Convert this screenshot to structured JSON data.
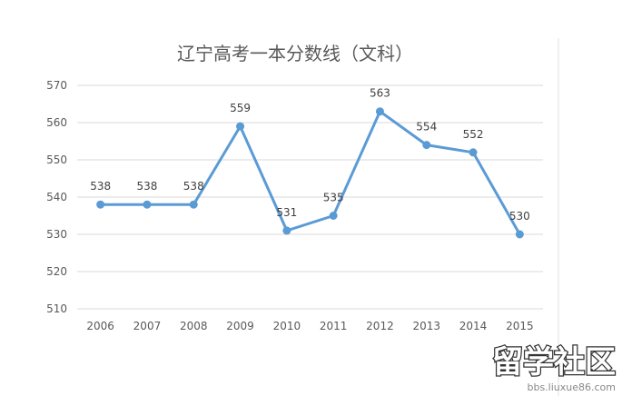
{
  "chart_data": {
    "type": "line",
    "title": "辽宁高考一本分数线（文科）",
    "categories": [
      "2006",
      "2007",
      "2008",
      "2009",
      "2010",
      "2011",
      "2012",
      "2013",
      "2014",
      "2015"
    ],
    "series": [
      {
        "values": [
          538,
          538,
          538,
          559,
          531,
          535,
          563,
          554,
          552,
          530
        ]
      }
    ],
    "ylim": [
      510,
      570
    ],
    "yticks": [
      510,
      520,
      530,
      540,
      550,
      560,
      570
    ],
    "grid": true,
    "data_labels": true,
    "line_color": "#5b9bd5"
  },
  "watermark": {
    "logo_text": "留学社区",
    "url": "bbs.liuxue86.com"
  }
}
